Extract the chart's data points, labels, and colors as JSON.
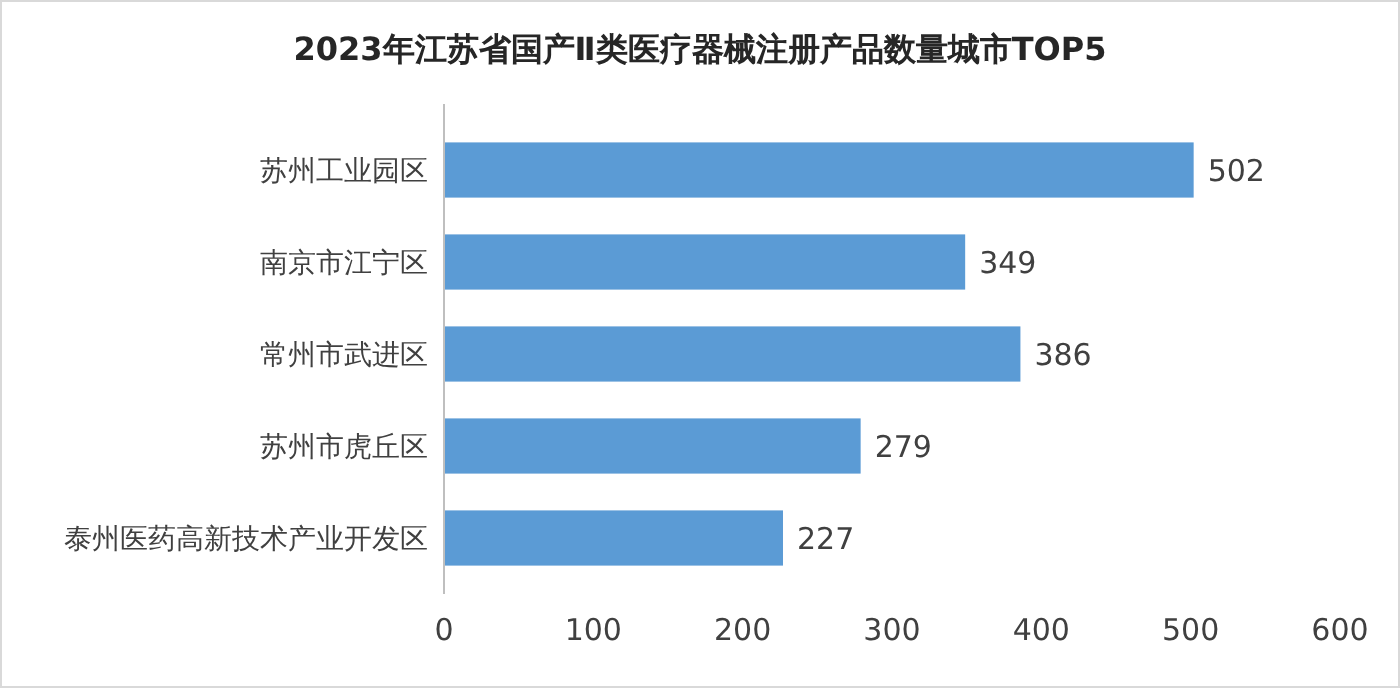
{
  "chart_data": {
    "type": "bar",
    "orientation": "horizontal",
    "title": "2023年江苏省国产Ⅱ类医疗器械注册产品数量城市TOP5",
    "categories": [
      "苏州工业园区",
      "南京市江宁区",
      "常州市武进区",
      "苏州市虎丘区",
      "泰州医药高新技术产业开发区"
    ],
    "values": [
      502,
      349,
      386,
      279,
      227
    ],
    "color": "#5b9bd5",
    "data_labels": true,
    "xlim": [
      0,
      600
    ],
    "xticks": [
      0,
      100,
      200,
      300,
      400,
      500,
      600
    ],
    "grid": false
  }
}
